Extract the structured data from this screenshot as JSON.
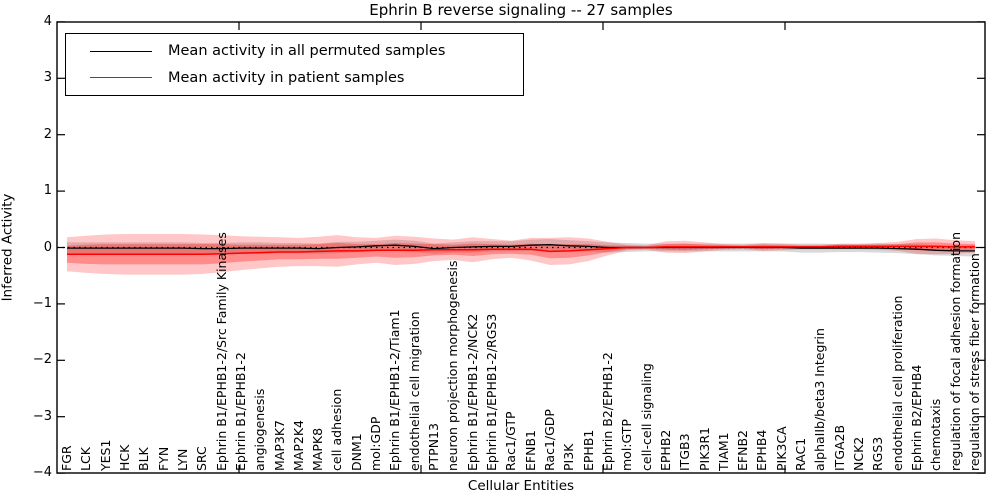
{
  "title": "Ephrin B reverse signaling -- 27 samples",
  "axes": {
    "ylabel": "Inferred Activity",
    "xlabel": "Cellular Entities",
    "ytick_labels": [
      "4",
      "3",
      "2",
      "1",
      "0",
      "−1",
      "−2",
      "−3",
      "−4"
    ],
    "ytick_values": [
      4,
      3,
      2,
      1,
      0,
      -1,
      -2,
      -3,
      -4
    ]
  },
  "legend": {
    "items": [
      {
        "label": "Mean activity in all permuted samples",
        "color": "#000000"
      },
      {
        "label": "Mean activity in patient samples",
        "color": "#ff0000"
      }
    ]
  },
  "chart_data": {
    "type": "line",
    "title": "Ephrin B reverse signaling -- 27 samples",
    "xlabel": "Cellular Entities",
    "ylabel": "Inferred Activity",
    "ylim": [
      -4,
      4
    ],
    "grid": false,
    "legend_position": "upper left",
    "zero_line": true,
    "categories": [
      "FGR",
      "LCK",
      "YES1",
      "HCK",
      "BLK",
      "FYN",
      "LYN",
      "SRC",
      "Ephrin B1/EPHB1-2/Src Family Kinases",
      "Ephrin B1/EPHB1-2",
      "angiogenesis",
      "MAP3K7",
      "MAP2K4",
      "MAPK8",
      "cell adhesion",
      "DNM1",
      "mol:GDP",
      "Ephrin B1/EPHB1-2/Tiam1",
      "endothelial cell migration",
      "PTPN13",
      "neuron projection morphogenesis",
      "Ephrin B1/EPHB1-2/NCK2",
      "Ephrin B1/EPHB1-2/RGS3",
      "Rac1/GTP",
      "EFNB1",
      "Rac1/GDP",
      "PI3K",
      "EPHB1",
      "Ephrin B2/EPHB1-2",
      "mol:GTP",
      "cell-cell signaling",
      "EPHB2",
      "ITGB3",
      "PIK3R1",
      "TIAM1",
      "EFNB2",
      "EPHB4",
      "PIK3CA",
      "RAC1",
      "alphaIIb/beta3 Integrin",
      "ITGA2B",
      "NCK2",
      "RGS3",
      "endothelial cell proliferation",
      "Ephrin B2/EPHB4",
      "chemotaxis",
      "regulation of focal adhesion formation",
      "regulation of stress fiber formation"
    ],
    "series": [
      {
        "name": "Mean activity in all permuted samples",
        "color": "#000000",
        "values": [
          -0.01,
          -0.01,
          -0.01,
          -0.01,
          -0.01,
          -0.01,
          -0.01,
          -0.02,
          -0.02,
          -0.01,
          -0.01,
          -0.01,
          -0.01,
          -0.02,
          0.0,
          0.01,
          0.03,
          0.04,
          0.02,
          -0.02,
          0.0,
          0.01,
          0.02,
          0.02,
          0.04,
          0.05,
          0.03,
          0.02,
          0.0,
          0.0,
          0.0,
          0.0,
          0.0,
          0.0,
          0.0,
          0.0,
          0.0,
          0.0,
          -0.01,
          -0.01,
          -0.01,
          -0.01,
          -0.01,
          -0.02,
          -0.03,
          -0.05,
          -0.06,
          -0.06
        ]
      },
      {
        "name": "Mean activity in patient samples",
        "color": "#ff0000",
        "values": [
          -0.12,
          -0.12,
          -0.12,
          -0.12,
          -0.12,
          -0.12,
          -0.12,
          -0.12,
          -0.11,
          -0.1,
          -0.09,
          -0.08,
          -0.08,
          -0.07,
          -0.06,
          -0.06,
          -0.05,
          -0.05,
          -0.05,
          -0.04,
          -0.04,
          -0.04,
          -0.03,
          -0.03,
          -0.03,
          -0.07,
          -0.06,
          -0.04,
          -0.02,
          0.0,
          0.0,
          0.01,
          0.01,
          0.01,
          0.01,
          0.01,
          0.01,
          0.01,
          0.01,
          0.01,
          0.02,
          0.02,
          0.02,
          0.02,
          0.02,
          0.02,
          0.01,
          0.01
        ]
      }
    ],
    "bands": [
      {
        "name": "permuted-samples-std-band",
        "center_series": 0,
        "fill": "rgba(120,120,120,0.28)",
        "half_widths": [
          0.1,
          0.1,
          0.1,
          0.1,
          0.1,
          0.1,
          0.1,
          0.1,
          0.1,
          0.1,
          0.1,
          0.09,
          0.09,
          0.09,
          0.1,
          0.09,
          0.09,
          0.1,
          0.1,
          0.09,
          0.09,
          0.1,
          0.09,
          0.09,
          0.1,
          0.1,
          0.1,
          0.09,
          0.09,
          0.08,
          0.07,
          0.07,
          0.07,
          0.07,
          0.07,
          0.07,
          0.07,
          0.07,
          0.08,
          0.08,
          0.07,
          0.07,
          0.08,
          0.08,
          0.09,
          0.09,
          0.09,
          0.1
        ]
      },
      {
        "name": "patient-samples-outer-band",
        "center_series": 1,
        "fill": "rgba(255,0,0,0.22)",
        "half_widths": [
          0.3,
          0.33,
          0.35,
          0.36,
          0.36,
          0.36,
          0.36,
          0.35,
          0.33,
          0.3,
          0.28,
          0.26,
          0.25,
          0.26,
          0.28,
          0.24,
          0.22,
          0.26,
          0.24,
          0.2,
          0.18,
          0.22,
          0.18,
          0.15,
          0.2,
          0.24,
          0.24,
          0.2,
          0.12,
          0.05,
          0.04,
          0.1,
          0.11,
          0.08,
          0.05,
          0.04,
          0.07,
          0.06,
          0.04,
          0.04,
          0.05,
          0.05,
          0.06,
          0.08,
          0.13,
          0.14,
          0.12,
          0.1
        ]
      },
      {
        "name": "patient-samples-inner-band",
        "center_series": 1,
        "fill": "rgba(255,0,0,0.30)",
        "half_widths": [
          0.15,
          0.17,
          0.18,
          0.18,
          0.18,
          0.18,
          0.18,
          0.18,
          0.17,
          0.15,
          0.14,
          0.13,
          0.13,
          0.13,
          0.14,
          0.12,
          0.11,
          0.13,
          0.12,
          0.1,
          0.09,
          0.11,
          0.09,
          0.08,
          0.1,
          0.12,
          0.12,
          0.1,
          0.06,
          0.03,
          0.02,
          0.05,
          0.06,
          0.04,
          0.03,
          0.02,
          0.04,
          0.03,
          0.02,
          0.02,
          0.03,
          0.03,
          0.03,
          0.04,
          0.07,
          0.07,
          0.06,
          0.05
        ]
      }
    ]
  }
}
